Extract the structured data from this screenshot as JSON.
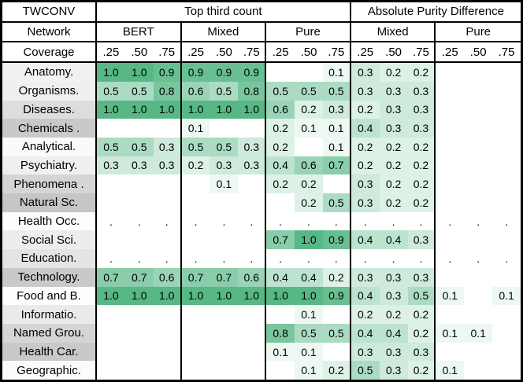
{
  "table": {
    "corner": {
      "title": "TWCONV",
      "network_label": "Network",
      "coverage_label": "Coverage"
    },
    "sections": [
      "Top third count",
      "Absolute Purity Difference"
    ],
    "subgroups": [
      "BERT",
      "Mixed",
      "Pure",
      "Mixed",
      "Pure"
    ],
    "coverage_ticks": [
      ".25",
      ".50",
      ".75"
    ],
    "colors": {
      "heat_max": "#57b886",
      "heat_min": "#ffffff",
      "border": "#000000"
    }
  },
  "chart_data": {
    "type": "heatmap",
    "title": "TWCONV",
    "legend": "cell green intensity encodes value from 0 (white) to 1.0 (green); row label gray shade as shown; '.' marks cells containing only a dot; null cells are empty",
    "col_groups": [
      {
        "section": "Top third count",
        "network": "BERT",
        "coverage": [
          ".25",
          ".50",
          ".75"
        ]
      },
      {
        "section": "Top third count",
        "network": "Mixed",
        "coverage": [
          ".25",
          ".50",
          ".75"
        ]
      },
      {
        "section": "Top third count",
        "network": "Pure",
        "coverage": [
          ".25",
          ".50",
          ".75"
        ]
      },
      {
        "section": "Absolute Purity Difference",
        "network": "Mixed",
        "coverage": [
          ".25",
          ".50",
          ".75"
        ]
      },
      {
        "section": "Absolute Purity Difference",
        "network": "Pure",
        "coverage": [
          ".25",
          ".50",
          ".75"
        ]
      }
    ],
    "value_range": [
      0,
      1.0
    ],
    "rows": [
      {
        "label": "Anatomy.",
        "label_shade": "#f1f1f1",
        "values": [
          1.0,
          1.0,
          0.9,
          0.9,
          0.9,
          0.9,
          null,
          null,
          0.1,
          0.3,
          0.2,
          0.2,
          null,
          null,
          null
        ]
      },
      {
        "label": "Organisms.",
        "label_shade": "#efefef",
        "values": [
          0.5,
          0.5,
          0.8,
          0.6,
          0.5,
          0.8,
          0.5,
          0.5,
          0.5,
          0.3,
          0.3,
          0.3,
          null,
          null,
          null
        ]
      },
      {
        "label": "Diseases.",
        "label_shade": "#dddddd",
        "values": [
          1.0,
          1.0,
          1.0,
          1.0,
          1.0,
          1.0,
          0.6,
          0.2,
          0.3,
          0.2,
          0.3,
          0.3,
          null,
          null,
          null
        ]
      },
      {
        "label": "Chemicals .",
        "label_shade": "#c9c9c9",
        "values": [
          null,
          null,
          null,
          0.1,
          null,
          null,
          0.2,
          0.1,
          0.1,
          0.4,
          0.3,
          0.3,
          null,
          null,
          null
        ]
      },
      {
        "label": "Analytical.",
        "label_shade": "#fafafa",
        "values": [
          0.5,
          0.5,
          0.3,
          0.5,
          0.5,
          0.3,
          0.2,
          null,
          0.1,
          0.2,
          0.2,
          0.2,
          null,
          null,
          null
        ]
      },
      {
        "label": "Psychiatry.",
        "label_shade": "#efefef",
        "values": [
          0.3,
          0.3,
          0.3,
          0.2,
          0.3,
          0.3,
          0.4,
          0.6,
          0.7,
          0.2,
          0.2,
          0.2,
          null,
          null,
          null
        ]
      },
      {
        "label": "Phenomena .",
        "label_shade": "#d5d5d5",
        "values": [
          null,
          null,
          null,
          null,
          0.1,
          null,
          0.2,
          0.2,
          null,
          0.3,
          0.2,
          0.2,
          null,
          null,
          null
        ]
      },
      {
        "label": "Natural Sc.",
        "label_shade": "#c6c6c6",
        "values": [
          null,
          null,
          null,
          null,
          null,
          null,
          null,
          0.2,
          0.5,
          0.3,
          0.2,
          0.2,
          null,
          null,
          null
        ]
      },
      {
        "label": "Health Occ.",
        "label_shade": "#fdfdfd",
        "values": [
          ".",
          ".",
          ".",
          ".",
          ".",
          ".",
          ".",
          ".",
          ".",
          ".",
          ".",
          ".",
          ".",
          ".",
          "."
        ]
      },
      {
        "label": "Social Sci.",
        "label_shade": "#ededed",
        "values": [
          null,
          null,
          null,
          null,
          null,
          null,
          0.7,
          1.0,
          0.9,
          0.4,
          0.4,
          0.3,
          null,
          null,
          null
        ]
      },
      {
        "label": "Education.",
        "label_shade": "#e4e4e4",
        "values": [
          ".",
          ".",
          ".",
          ".",
          ".",
          ".",
          ".",
          ".",
          ".",
          ".",
          ".",
          ".",
          ".",
          ".",
          "."
        ]
      },
      {
        "label": "Technology.",
        "label_shade": "#c9c9c9",
        "values": [
          0.7,
          0.7,
          0.6,
          0.7,
          0.7,
          0.6,
          0.4,
          0.4,
          0.2,
          0.3,
          0.3,
          0.3,
          null,
          null,
          null
        ]
      },
      {
        "label": "Food and B.",
        "label_shade": "#fdfdfd",
        "values": [
          1.0,
          1.0,
          1.0,
          1.0,
          1.0,
          1.0,
          1.0,
          1.0,
          0.9,
          0.4,
          0.3,
          0.5,
          0.1,
          null,
          0.1
        ]
      },
      {
        "label": "Informatio.",
        "label_shade": "#eaeaea",
        "values": [
          null,
          null,
          null,
          null,
          null,
          null,
          null,
          0.1,
          null,
          0.2,
          0.2,
          0.2,
          null,
          null,
          null
        ]
      },
      {
        "label": "Named Grou.",
        "label_shade": "#d5d5d5",
        "values": [
          null,
          null,
          null,
          null,
          null,
          null,
          0.8,
          0.5,
          0.5,
          0.4,
          0.4,
          0.2,
          0.1,
          0.1,
          null
        ]
      },
      {
        "label": "Health Car.",
        "label_shade": "#c9c9c9",
        "values": [
          null,
          null,
          null,
          null,
          null,
          null,
          0.1,
          0.1,
          null,
          0.3,
          0.3,
          0.3,
          null,
          null,
          null
        ]
      },
      {
        "label": "Geographic.",
        "label_shade": "#fbfbfb",
        "values": [
          null,
          null,
          null,
          null,
          null,
          null,
          null,
          0.1,
          0.2,
          0.5,
          0.3,
          0.2,
          0.1,
          null,
          null
        ]
      }
    ]
  }
}
